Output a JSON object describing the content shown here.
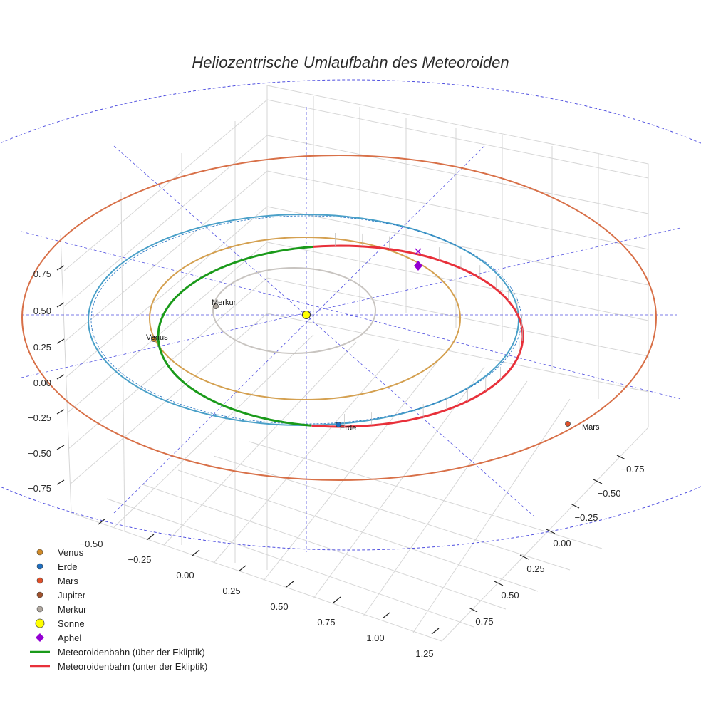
{
  "chart_data": {
    "type": "scatter3d",
    "title": "Heliozentrische Umlaufbahn des Meteoroiden",
    "colors": {
      "venus": "#d08a28",
      "erde": "#1f6fc0",
      "mars": "#e0502a",
      "jupiter": "#a0522d",
      "merkur": "#b0a8a0",
      "sonne": "#ffff00",
      "aphel": "#9400d3",
      "above": "#1a9a1a",
      "below": "#e8303a",
      "venus_orbit": "#d4a050",
      "earth_orbit": "#4aa0c8",
      "mars_orbit": "#d87048",
      "mercury_orbit": "#c8c4c0",
      "jupiter_orbit": "#5050e0"
    },
    "ticks": {
      "z": [
        "0.75",
        "0.50",
        "0.25",
        "0.00",
        "−0.25",
        "−0.50",
        "−0.75"
      ],
      "x": [
        "−0.50",
        "−0.25",
        "0.00",
        "0.25",
        "0.50",
        "0.75",
        "1.00",
        "1.25"
      ],
      "y": [
        "−0.75",
        "−0.50",
        "−0.25",
        "0.00",
        "0.25",
        "0.50",
        "0.75"
      ]
    },
    "planet_labels": {
      "merkur": "Merkur",
      "venus": "Venus",
      "erde": "Erde",
      "mars": "Mars"
    },
    "legend": [
      {
        "key": "venus",
        "label": "Venus",
        "marker": "circle"
      },
      {
        "key": "erde",
        "label": "Erde",
        "marker": "circle"
      },
      {
        "key": "mars",
        "label": "Mars",
        "marker": "circle"
      },
      {
        "key": "jupiter",
        "label": "Jupiter",
        "marker": "circle"
      },
      {
        "key": "merkur",
        "label": "Merkur",
        "marker": "circle"
      },
      {
        "key": "sonne",
        "label": "Sonne",
        "marker": "circle-large"
      },
      {
        "key": "aphel",
        "label": "Aphel",
        "marker": "diamond"
      },
      {
        "key": "above",
        "label": "Meteoroidenbahn (über der Ekliptik)",
        "marker": "line"
      },
      {
        "key": "below",
        "label": "Meteoroidenbahn (unter der Ekliptik)",
        "marker": "line"
      }
    ],
    "orbits": [
      {
        "name": "Merkur",
        "semi_major_au": 0.39
      },
      {
        "name": "Venus",
        "semi_major_au": 0.72
      },
      {
        "name": "Erde",
        "semi_major_au": 1.0
      },
      {
        "name": "Mars",
        "semi_major_au": 1.52
      }
    ]
  }
}
